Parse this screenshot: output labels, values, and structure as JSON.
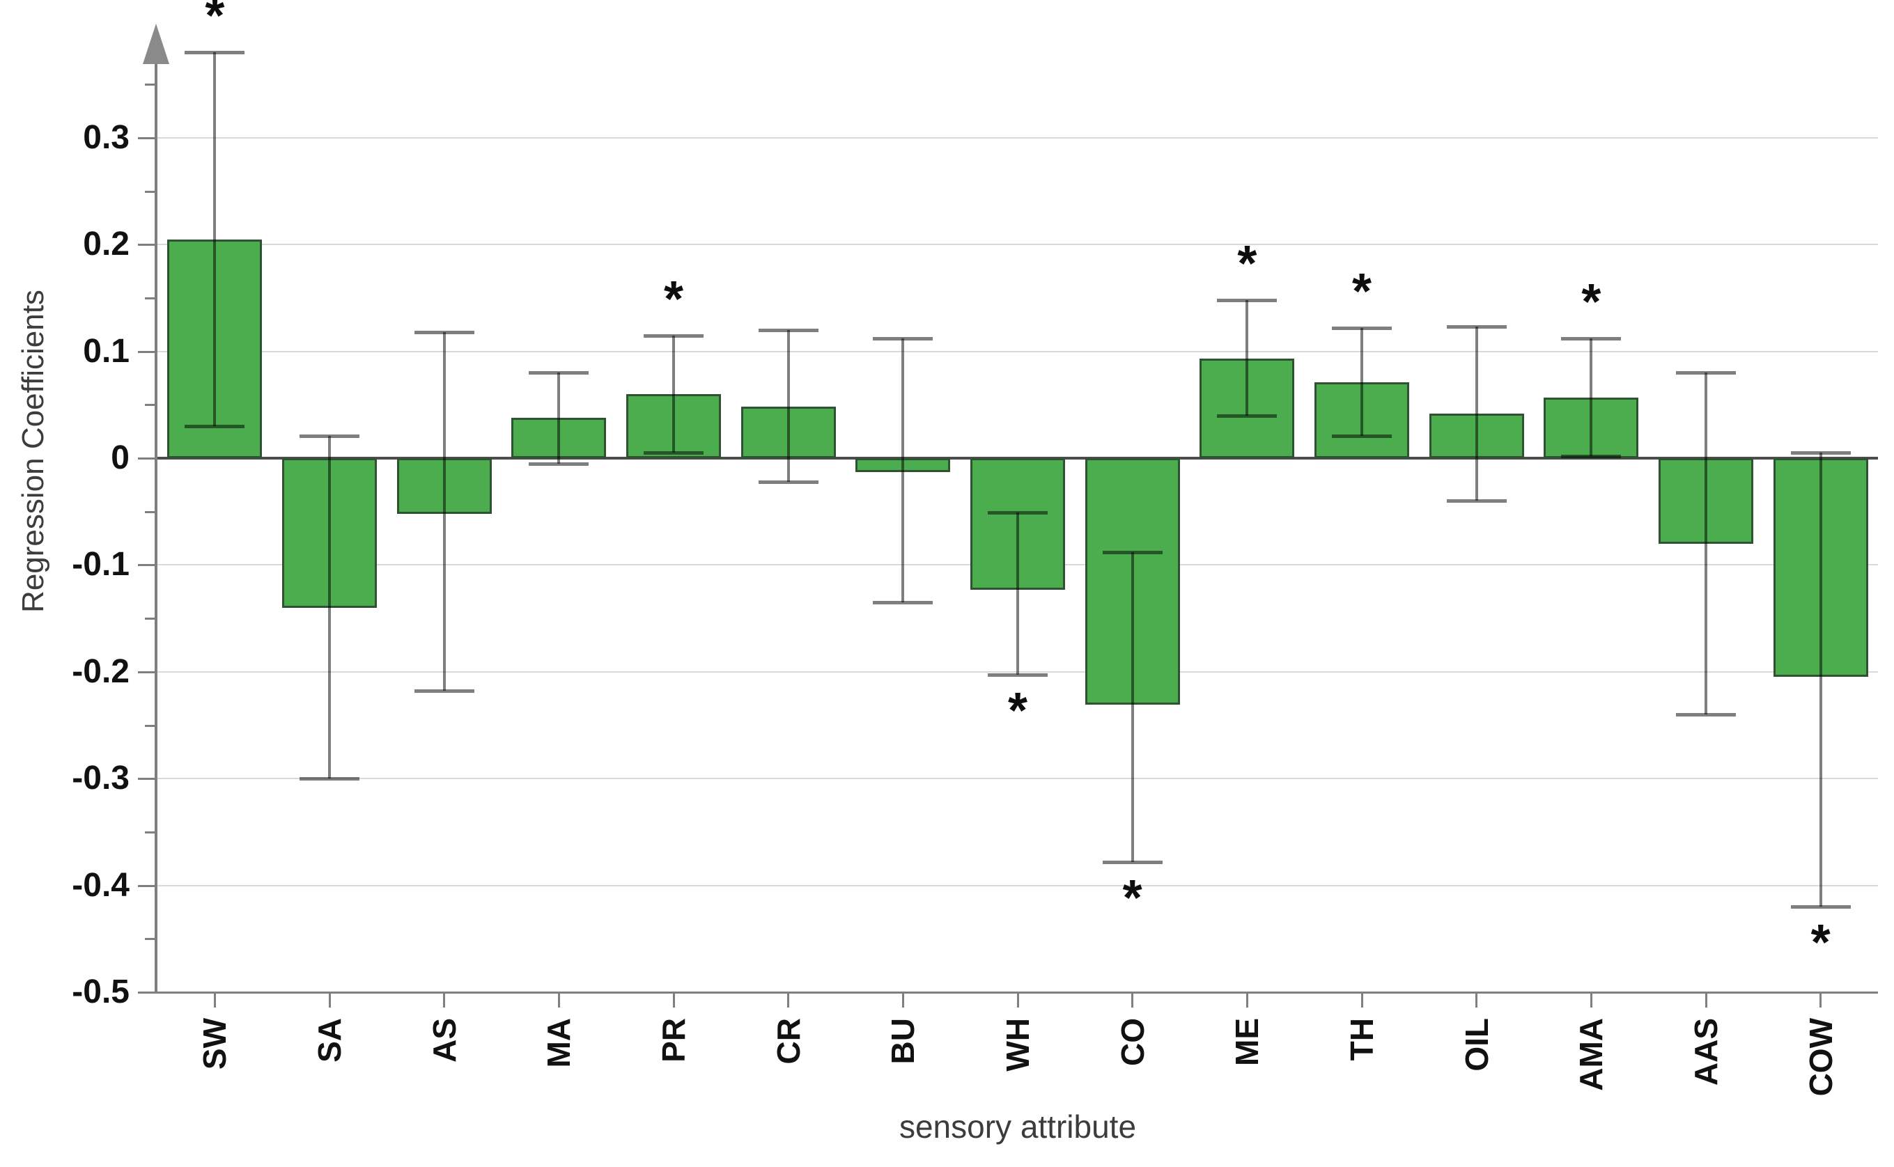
{
  "page": {
    "background": "#ffffff"
  },
  "chart_data": {
    "type": "bar",
    "title": "",
    "xlabel": "sensory attribute",
    "ylabel": "Regression Coefficients",
    "categories": [
      "SW",
      "SA",
      "AS",
      "MA",
      "PR",
      "CR",
      "BU",
      "WH",
      "CO",
      "ME",
      "TH",
      "OIL",
      "AMA",
      "AAS",
      "COW"
    ],
    "values": [
      0.205,
      -0.14,
      -0.052,
      0.038,
      0.06,
      0.048,
      -0.013,
      -0.123,
      -0.231,
      0.093,
      0.071,
      0.042,
      0.057,
      -0.08,
      -0.205
    ],
    "error_high": [
      0.38,
      0.021,
      0.118,
      0.08,
      0.115,
      0.12,
      0.112,
      -0.051,
      -0.088,
      0.148,
      0.122,
      0.123,
      0.112,
      0.08,
      0.005
    ],
    "error_low": [
      0.03,
      -0.3,
      -0.218,
      -0.005,
      0.005,
      -0.022,
      -0.135,
      -0.203,
      -0.378,
      0.04,
      0.021,
      -0.04,
      0.002,
      -0.24,
      -0.42
    ],
    "significant": [
      true,
      false,
      false,
      false,
      true,
      false,
      false,
      true,
      true,
      true,
      true,
      false,
      true,
      false,
      true
    ],
    "significance_marker": "*",
    "ylim": [
      -0.5,
      0.4
    ],
    "grid": true,
    "legend": "none",
    "yticks": [
      {
        "value": 0.3,
        "label": "0.3"
      },
      {
        "value": 0.2,
        "label": "0.2"
      },
      {
        "value": 0.1,
        "label": "0.1"
      },
      {
        "value": 0,
        "label": "0"
      },
      {
        "value": -0.1,
        "label": "-0.1"
      },
      {
        "value": -0.2,
        "label": "-0.2"
      },
      {
        "value": -0.3,
        "label": "-0.3"
      },
      {
        "value": -0.4,
        "label": "-0.4"
      },
      {
        "value": -0.5,
        "label": "-0.5"
      }
    ],
    "minor_ticks": [
      0.35,
      0.25,
      0.15,
      0.05,
      -0.05,
      -0.15,
      -0.25,
      -0.35,
      -0.45
    ],
    "gridlines": [
      0.3,
      0.2,
      0.1,
      -0.1,
      -0.2,
      -0.3,
      -0.4
    ],
    "colors": {
      "bar_fill": "#4bad4d",
      "bar_border": "#2f5233",
      "error_bar": "rgba(0,0,0,0.5)",
      "grid": "#d9d9d9",
      "axis": "#7f7f7f",
      "zero_line": "#4d4d4d",
      "tick_text": "#111111",
      "axis_title_text": "#3c3c3c",
      "significance": "#0d0d0d"
    }
  }
}
